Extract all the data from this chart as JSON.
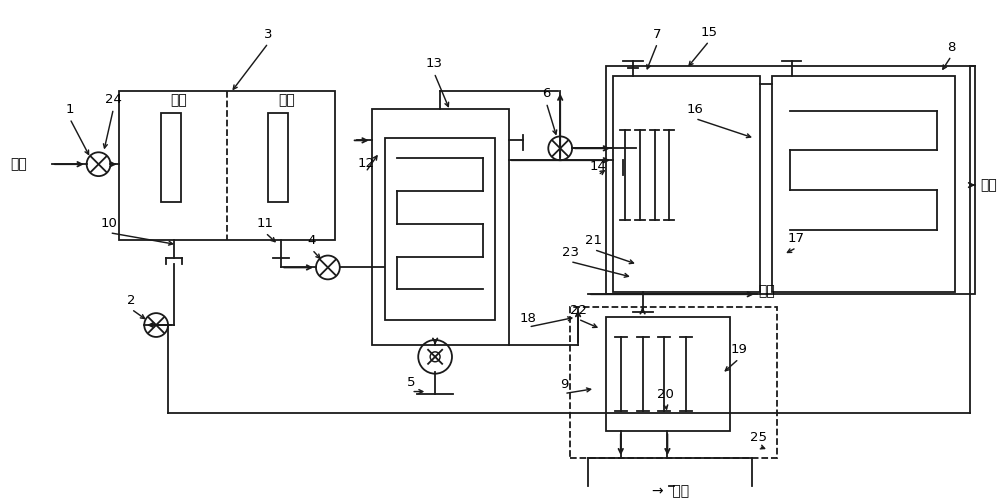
{
  "bg_color": "#ffffff",
  "line_color": "#1a1a1a",
  "fig_width": 10.0,
  "fig_height": 5.01,
  "labels": {
    "haishui": "海水",
    "yanqi": "烟气",
    "paifang": "排放",
    "paiqi": "排气",
    "yangji": "阳极",
    "yinji": "阴极"
  },
  "numbers": [
    "1",
    "2",
    "3",
    "4",
    "5",
    "6",
    "7",
    "8",
    "9",
    "10",
    "11",
    "12",
    "13",
    "14",
    "15",
    "16",
    "17",
    "18",
    "19",
    "20",
    "21",
    "22",
    "23",
    "24",
    "25"
  ]
}
